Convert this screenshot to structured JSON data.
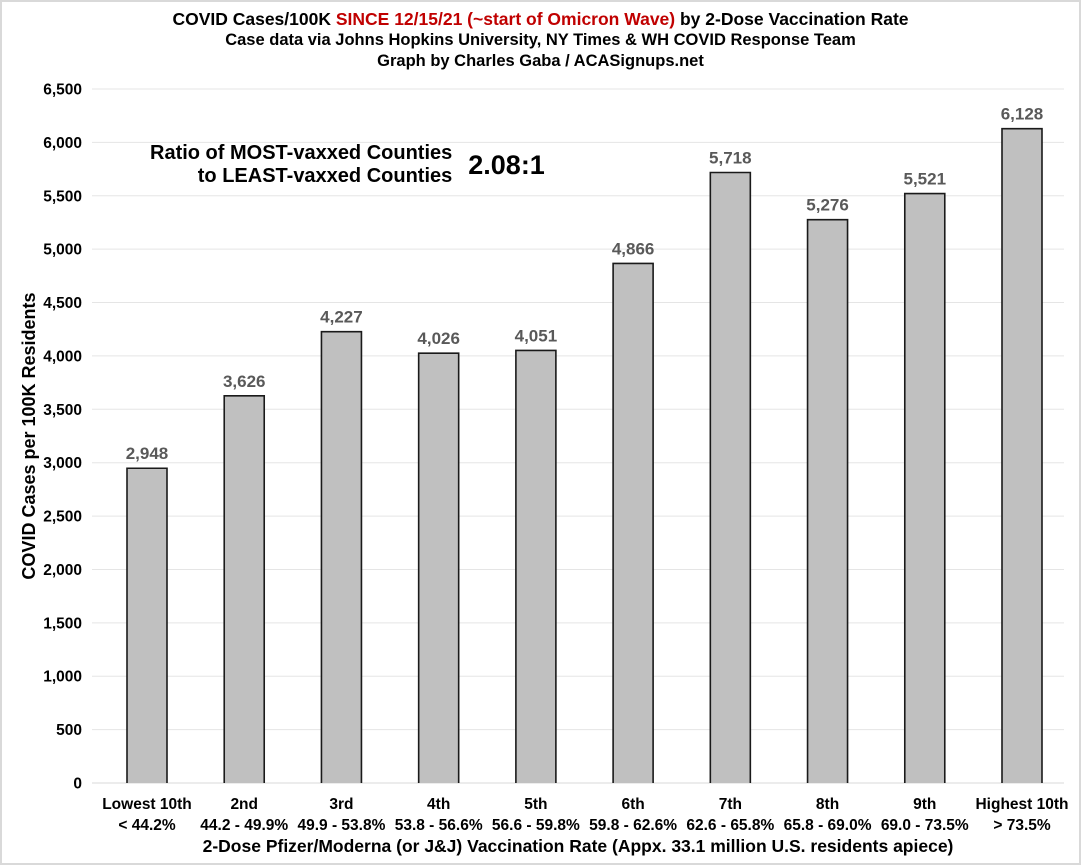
{
  "title": {
    "line1_before": "COVID Cases/100K ",
    "line1_highlight": "SINCE 12/15/21 (~start of Omicron Wave)",
    "line1_after": " by 2-Dose Vaccination Rate",
    "line2": "Case data via Johns Hopkins University, NY Times & WH COVID Response Team",
    "line3": "Graph by Charles Gaba / ACASignups.net",
    "highlight_color": "#C00000"
  },
  "annotation": {
    "line1": "Ratio of MOST-vaxxed Counties",
    "line2": "to LEAST-vaxxed Counties",
    "ratio": "2.08:1"
  },
  "chart_data": {
    "type": "bar",
    "title": "COVID Cases/100K SINCE 12/15/21 (~start of Omicron Wave) by 2-Dose Vaccination Rate",
    "subtitle": "Case data via Johns Hopkins University, NY Times & WH COVID Response Team",
    "credit": "Graph by Charles Gaba / ACASignups.net",
    "categories": [
      "Lowest 10th",
      "2nd",
      "3rd",
      "4th",
      "5th",
      "6th",
      "7th",
      "8th",
      "9th",
      "Highest 10th"
    ],
    "category_ranges": [
      "< 44.2%",
      "44.2 - 49.9%",
      "49.9 - 53.8%",
      "53.8 - 56.6%",
      "56.6 - 59.8%",
      "59.8 - 62.6%",
      "62.6 - 65.8%",
      "65.8 - 69.0%",
      "69.0 - 73.5%",
      "> 73.5%"
    ],
    "values": [
      2948,
      3626,
      4227,
      4026,
      4051,
      4866,
      5718,
      5276,
      5521,
      6128
    ],
    "xlabel": "2-Dose Pfizer/Moderna (or  J&J) Vaccination Rate (Appx. 33.1 million U.S. residents apiece)",
    "ylabel": "COVID Cases per 100K Residents",
    "ylim": [
      0,
      6500
    ],
    "ytick_step": 500,
    "grid": true,
    "legend": false,
    "annotation_ratio": "2.08:1",
    "colors": {
      "bar_fill": "#C0C0C0",
      "bar_stroke": "#1a1a1a",
      "data_label": "#595959",
      "gridline": "#E5E5E5",
      "baseline": "#D8D8D8",
      "axis_text": "#000000",
      "title_highlight": "#C00000"
    }
  }
}
